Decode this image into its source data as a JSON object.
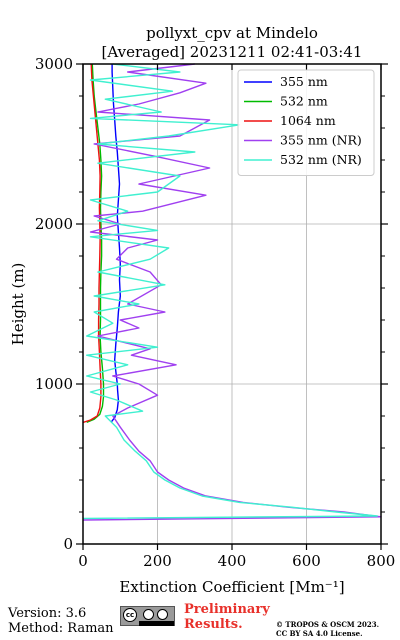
{
  "chart_data": {
    "type": "line",
    "title": "pollyxt_cpv at Mindelo",
    "subtitle": "[Averaged] 20231211 02:41-03:41",
    "xlabel": "Extinction Coefficient [Mm⁻¹]",
    "ylabel": "Height (m)",
    "xlim": [
      0,
      800
    ],
    "ylim": [
      0,
      3000
    ],
    "xticks": [
      0,
      200,
      400,
      600,
      800
    ],
    "yticks": [
      0,
      1000,
      2000,
      3000
    ],
    "grid": true,
    "legend_position": "top-right",
    "series": [
      {
        "name": "355 nm",
        "color": "#0000ff",
        "points": [
          [
            75,
            760
          ],
          [
            85,
            790
          ],
          [
            92,
            840
          ],
          [
            95,
            900
          ],
          [
            93,
            960
          ],
          [
            92,
            1000
          ],
          [
            88,
            1080
          ],
          [
            85,
            1150
          ],
          [
            88,
            1250
          ],
          [
            92,
            1350
          ],
          [
            95,
            1450
          ],
          [
            100,
            1550
          ],
          [
            98,
            1650
          ],
          [
            100,
            1750
          ],
          [
            98,
            1850
          ],
          [
            95,
            1950
          ],
          [
            92,
            2050
          ],
          [
            95,
            2150
          ],
          [
            98,
            2250
          ],
          [
            95,
            2350
          ],
          [
            92,
            2450
          ],
          [
            88,
            2550
          ],
          [
            85,
            2650
          ],
          [
            82,
            2750
          ],
          [
            80,
            2850
          ],
          [
            78,
            2950
          ],
          [
            78,
            3000
          ]
        ]
      },
      {
        "name": "532 nm",
        "color": "#00bb00",
        "points": [
          [
            10,
            760
          ],
          [
            30,
            780
          ],
          [
            45,
            810
          ],
          [
            52,
            860
          ],
          [
            55,
            920
          ],
          [
            55,
            1000
          ],
          [
            52,
            1100
          ],
          [
            48,
            1200
          ],
          [
            46,
            1300
          ],
          [
            47,
            1400
          ],
          [
            47,
            1500
          ],
          [
            47,
            1600
          ],
          [
            48,
            1700
          ],
          [
            50,
            1800
          ],
          [
            50,
            1900
          ],
          [
            48,
            2000
          ],
          [
            47,
            2100
          ],
          [
            48,
            2200
          ],
          [
            50,
            2300
          ],
          [
            48,
            2400
          ],
          [
            45,
            2500
          ],
          [
            40,
            2600
          ],
          [
            35,
            2700
          ],
          [
            30,
            2800
          ],
          [
            27,
            2900
          ],
          [
            25,
            3000
          ]
        ]
      },
      {
        "name": "1064 nm",
        "color": "#ee1111",
        "points": [
          [
            0,
            760
          ],
          [
            20,
            775
          ],
          [
            38,
            800
          ],
          [
            45,
            850
          ],
          [
            48,
            920
          ],
          [
            48,
            1000
          ],
          [
            46,
            1100
          ],
          [
            44,
            1200
          ],
          [
            42,
            1300
          ],
          [
            42,
            1400
          ],
          [
            43,
            1500
          ],
          [
            43,
            1600
          ],
          [
            44,
            1700
          ],
          [
            45,
            1800
          ],
          [
            46,
            1900
          ],
          [
            45,
            2000
          ],
          [
            44,
            2100
          ],
          [
            45,
            2200
          ],
          [
            46,
            2300
          ],
          [
            44,
            2400
          ],
          [
            40,
            2500
          ],
          [
            36,
            2600
          ],
          [
            32,
            2700
          ],
          [
            28,
            2800
          ],
          [
            24,
            2900
          ],
          [
            22,
            3000
          ]
        ]
      },
      {
        "name": "355 nm (NR)",
        "color": "#a040f0",
        "points": [
          [
            0,
            150
          ],
          [
            800,
            170
          ],
          [
            700,
            200
          ],
          [
            550,
            230
          ],
          [
            430,
            260
          ],
          [
            330,
            300
          ],
          [
            270,
            350
          ],
          [
            230,
            400
          ],
          [
            200,
            450
          ],
          [
            180,
            520
          ],
          [
            150,
            580
          ],
          [
            125,
            650
          ],
          [
            100,
            730
          ],
          [
            80,
            800
          ],
          [
            120,
            850
          ],
          [
            200,
            930
          ],
          [
            150,
            1000
          ],
          [
            80,
            1050
          ],
          [
            250,
            1120
          ],
          [
            130,
            1180
          ],
          [
            180,
            1220
          ],
          [
            40,
            1300
          ],
          [
            150,
            1350
          ],
          [
            100,
            1400
          ],
          [
            220,
            1450
          ],
          [
            120,
            1500
          ],
          [
            210,
            1620
          ],
          [
            180,
            1700
          ],
          [
            90,
            1780
          ],
          [
            120,
            1850
          ],
          [
            200,
            1900
          ],
          [
            20,
            1950
          ],
          [
            100,
            2000
          ],
          [
            30,
            2050
          ],
          [
            160,
            2080
          ],
          [
            330,
            2180
          ],
          [
            150,
            2250
          ],
          [
            340,
            2350
          ],
          [
            200,
            2420
          ],
          [
            30,
            2500
          ],
          [
            260,
            2550
          ],
          [
            340,
            2650
          ],
          [
            40,
            2700
          ],
          [
            150,
            2750
          ],
          [
            260,
            2820
          ],
          [
            330,
            2880
          ],
          [
            120,
            2950
          ],
          [
            300,
            3000
          ]
        ]
      },
      {
        "name": "532 nm (NR)",
        "color": "#40f0d0",
        "points": [
          [
            0,
            160
          ],
          [
            790,
            175
          ],
          [
            680,
            200
          ],
          [
            560,
            230
          ],
          [
            420,
            260
          ],
          [
            320,
            300
          ],
          [
            260,
            350
          ],
          [
            220,
            400
          ],
          [
            190,
            450
          ],
          [
            170,
            520
          ],
          [
            140,
            580
          ],
          [
            110,
            650
          ],
          [
            90,
            730
          ],
          [
            60,
            800
          ],
          [
            160,
            830
          ],
          [
            90,
            900
          ],
          [
            20,
            950
          ],
          [
            100,
            1000
          ],
          [
            10,
            1050
          ],
          [
            120,
            1120
          ],
          [
            10,
            1180
          ],
          [
            200,
            1230
          ],
          [
            10,
            1300
          ],
          [
            80,
            1380
          ],
          [
            30,
            1450
          ],
          [
            150,
            1500
          ],
          [
            30,
            1550
          ],
          [
            220,
            1620
          ],
          [
            40,
            1700
          ],
          [
            180,
            1780
          ],
          [
            230,
            1850
          ],
          [
            20,
            1920
          ],
          [
            200,
            1960
          ],
          [
            40,
            2020
          ],
          [
            120,
            2080
          ],
          [
            20,
            2150
          ],
          [
            200,
            2200
          ],
          [
            260,
            2300
          ],
          [
            40,
            2380
          ],
          [
            300,
            2450
          ],
          [
            40,
            2500
          ],
          [
            230,
            2550
          ],
          [
            420,
            2620
          ],
          [
            20,
            2660
          ],
          [
            210,
            2700
          ],
          [
            60,
            2780
          ],
          [
            240,
            2830
          ],
          [
            20,
            2900
          ],
          [
            260,
            2950
          ],
          [
            80,
            3000
          ]
        ]
      }
    ]
  },
  "footer": {
    "version": "Version: 3.6",
    "method": "Method: Raman",
    "preliminary_line1": "Preliminary",
    "preliminary_line2": "Results.",
    "copyright_line1": "© TROPOS & OSCM 2023.",
    "copyright_line2": "CC BY SA 4.0 License.",
    "cc_badge_text": "cc"
  }
}
